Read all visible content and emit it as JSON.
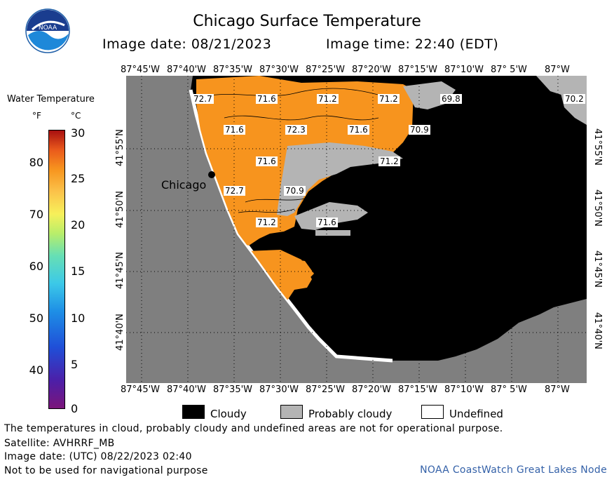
{
  "header": {
    "title": "Chicago Surface Temperature",
    "image_date_label": "Image date: 08/21/2023",
    "image_time_label": "Image time: 22:40 (EDT)"
  },
  "logo": {
    "text": "NOAA"
  },
  "legend": {
    "title": "Water Temperature",
    "unit_f": "°F",
    "unit_c": "°C",
    "ticks_f": [
      "80",
      "70",
      "60",
      "50",
      "40"
    ],
    "ticks_c": [
      "30",
      "25",
      "20",
      "15",
      "10",
      "5",
      "0"
    ]
  },
  "map": {
    "lon_labels": [
      "87°45'W",
      "87°40'W",
      "87°35'W",
      "87°30'W",
      "87°25'W",
      "87°20'W",
      "87°15'W",
      "87°10'W",
      "87° 5'W",
      "87°W"
    ],
    "lat_labels": [
      "41°55'N",
      "41°50'N",
      "41°45'N",
      "41°40'N"
    ],
    "city_label": "Chicago",
    "temp_labels": [
      "72.7",
      "71.6",
      "71.2",
      "71.2",
      "69.8",
      "70.2",
      "71.6",
      "72.3",
      "71.6",
      "70.9",
      "71.6",
      "71.2",
      "72.7",
      "70.9",
      "71.2",
      "71.6"
    ],
    "colors": {
      "land": "#7f7f7f",
      "water_warm": "#f7941e",
      "cloudy": "#000000",
      "probably_cloudy": "#b4b4b4",
      "undefined": "#ffffff"
    }
  },
  "categories": {
    "cloudy": "Cloudy",
    "probably_cloudy": "Probably cloudy",
    "undefined": "Undefined"
  },
  "footer": {
    "disclaimer": "The temperatures in cloud, probably cloudy and undefined areas are not for operational purpose.",
    "satellite": "Satellite: AVHRRF_MB",
    "utc_date": "Image date: (UTC) 08/22/2023  02:40",
    "nav_warning": "Not to be used for navigational purpose",
    "credit": "NOAA CoastWatch Great Lakes Node"
  }
}
